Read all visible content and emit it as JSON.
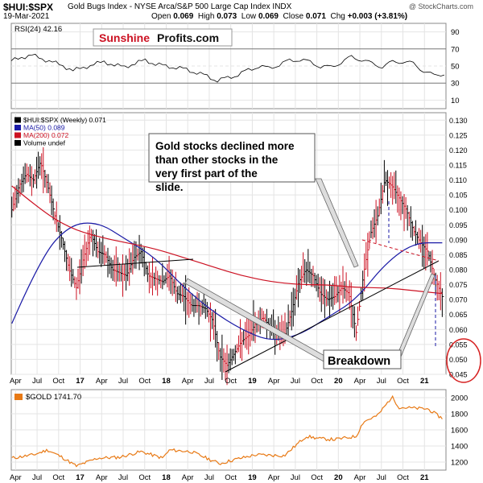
{
  "header": {
    "symbol": "$HUI:$SPX",
    "description": "Gold Bugs Index - NYSE Arca/S&P 500 Large Cap Index  INDX",
    "watermark": "@ StockCharts.com",
    "date": "19-Mar-2021",
    "ohlc": {
      "open_label": "Open",
      "open": "0.069",
      "high_label": "High",
      "high": "0.073",
      "low_label": "Low",
      "low": "0.069",
      "close_label": "Close",
      "close": "0.071",
      "chg_label": "Chg",
      "chg": "+0.003 (+3.81%)"
    }
  },
  "logo": {
    "part1": "Sunshine",
    "part2": "Profits.com"
  },
  "rsi_panel": {
    "legend": "RSI(24) 42.16",
    "ticks": [
      90,
      70,
      50,
      30,
      10
    ]
  },
  "main_panel": {
    "legend": [
      {
        "text": "$HUI:$SPX (Weekly) 0.071",
        "color": "#000000"
      },
      {
        "text": "MA(50) 0.089",
        "color": "#1a1aa6"
      },
      {
        "text": "MA(200) 0.072",
        "color": "#cc1122"
      },
      {
        "text": "Volume undef",
        "color": "#000000"
      }
    ],
    "ticks": [
      "0.130",
      "0.125",
      "0.120",
      "0.115",
      "0.110",
      "0.105",
      "0.100",
      "0.095",
      "0.090",
      "0.085",
      "0.080",
      "0.075",
      "0.070",
      "0.065",
      "0.060",
      "0.055",
      "0.050",
      "0.045"
    ],
    "annotation_top": "Gold stocks declined more than other stocks in the very first part of the slide.",
    "annotation_bottom": "Breakdown"
  },
  "gold_panel": {
    "legend": "$GOLD 1741.70",
    "ticks": [
      2000,
      1800,
      1600,
      1400,
      1200
    ]
  },
  "x_axis": {
    "labels": [
      "Apr",
      "Jul",
      "Oct",
      "17",
      "Apr",
      "Jul",
      "Oct",
      "18",
      "Apr",
      "Jul",
      "Oct",
      "19",
      "Apr",
      "Jul",
      "Oct",
      "20",
      "Apr",
      "Jul",
      "Oct",
      "21"
    ]
  },
  "colors": {
    "price": "#000000",
    "ma50": "#1a1aa6",
    "ma200": "#cc1122",
    "gold": "#e87a16",
    "logo_red": "#cc1122",
    "highlight_circle": "#d62020"
  },
  "chart_data": [
    {
      "type": "line",
      "title": "$HUI:$SPX (Weekly)",
      "series": [
        {
          "name": "$HUI:$SPX (Weekly) 0.071",
          "x": [
            "2016-03",
            "2016-04",
            "2016-05",
            "2016-06",
            "2016-07",
            "2016-08",
            "2016-09",
            "2016-10",
            "2016-11",
            "2016-12",
            "2017-01",
            "2017-02",
            "2017-03",
            "2017-04",
            "2017-05",
            "2017-06",
            "2017-07",
            "2017-08",
            "2017-09",
            "2017-10",
            "2017-11",
            "2017-12",
            "2018-01",
            "2018-02",
            "2018-03",
            "2018-04",
            "2018-05",
            "2018-06",
            "2018-07",
            "2018-08",
            "2018-09",
            "2018-10",
            "2018-11",
            "2018-12",
            "2019-01",
            "2019-02",
            "2019-03",
            "2019-04",
            "2019-05",
            "2019-06",
            "2019-07",
            "2019-08",
            "2019-09",
            "2019-10",
            "2019-11",
            "2019-12",
            "2020-01",
            "2020-02",
            "2020-03",
            "2020-04",
            "2020-05",
            "2020-06",
            "2020-07",
            "2020-08",
            "2020-09",
            "2020-10",
            "2020-11",
            "2020-12",
            "2021-01",
            "2021-02",
            "2021-03"
          ],
          "values": [
            0.1,
            0.108,
            0.112,
            0.11,
            0.116,
            0.108,
            0.098,
            0.09,
            0.08,
            0.074,
            0.084,
            0.092,
            0.086,
            0.085,
            0.08,
            0.079,
            0.078,
            0.084,
            0.086,
            0.078,
            0.077,
            0.076,
            0.078,
            0.072,
            0.071,
            0.068,
            0.068,
            0.067,
            0.063,
            0.051,
            0.048,
            0.052,
            0.056,
            0.058,
            0.062,
            0.064,
            0.061,
            0.059,
            0.058,
            0.066,
            0.076,
            0.08,
            0.078,
            0.072,
            0.07,
            0.071,
            0.074,
            0.072,
            0.059,
            0.078,
            0.092,
            0.098,
            0.11,
            0.108,
            0.104,
            0.1,
            0.093,
            0.089,
            0.086,
            0.077,
            0.071
          ]
        },
        {
          "name": "MA(50) 0.089",
          "x": [
            "2016-03",
            "2016-07",
            "2016-11",
            "2017-03",
            "2017-07",
            "2017-11",
            "2018-03",
            "2018-07",
            "2018-11",
            "2019-03",
            "2019-07",
            "2019-11",
            "2020-03",
            "2020-07",
            "2020-11",
            "2021-03"
          ],
          "values": [
            0.062,
            0.084,
            0.095,
            0.096,
            0.09,
            0.084,
            0.074,
            0.066,
            0.06,
            0.056,
            0.058,
            0.064,
            0.07,
            0.082,
            0.089,
            0.089
          ]
        },
        {
          "name": "MA(200) 0.072",
          "x": [
            "2016-03",
            "2016-07",
            "2016-11",
            "2017-03",
            "2017-07",
            "2017-11",
            "2018-03",
            "2018-07",
            "2018-11",
            "2019-03",
            "2019-07",
            "2019-11",
            "2020-03",
            "2020-07",
            "2020-11",
            "2021-03"
          ],
          "values": [
            0.108,
            0.1,
            0.094,
            0.091,
            0.089,
            0.087,
            0.084,
            0.081,
            0.078,
            0.076,
            0.075,
            0.075,
            0.074,
            0.074,
            0.073,
            0.072
          ]
        }
      ],
      "ylim": [
        0.045,
        0.13
      ],
      "grid": true,
      "legend_placement": "top-left"
    },
    {
      "type": "line",
      "title": "RSI(24)",
      "series": [
        {
          "name": "RSI(24) 42.16",
          "values": [
            56,
            60,
            63,
            58,
            55,
            50,
            45,
            48,
            52,
            55,
            51,
            49,
            53,
            57,
            52,
            50,
            48,
            46,
            42,
            38,
            33,
            36,
            40,
            45,
            50,
            47,
            52,
            56,
            58,
            54,
            50,
            48,
            55,
            60,
            58,
            52,
            50,
            54,
            56,
            52,
            45,
            38,
            42
          ]
        }
      ],
      "ylim": [
        0,
        100
      ],
      "grid": true
    },
    {
      "type": "line",
      "title": "$GOLD",
      "series": [
        {
          "name": "$GOLD 1741.70",
          "x": [
            "2016-03",
            "2016-06",
            "2016-08",
            "2016-10",
            "2016-12",
            "2017-03",
            "2017-06",
            "2017-09",
            "2017-12",
            "2018-01",
            "2018-04",
            "2018-08",
            "2018-10",
            "2019-01",
            "2019-05",
            "2019-08",
            "2019-10",
            "2019-12",
            "2020-03",
            "2020-04",
            "2020-06",
            "2020-08",
            "2020-09",
            "2020-11",
            "2021-01",
            "2021-03"
          ],
          "values": [
            1250,
            1290,
            1350,
            1260,
            1150,
            1250,
            1260,
            1330,
            1250,
            1350,
            1330,
            1180,
            1230,
            1290,
            1280,
            1520,
            1490,
            1480,
            1520,
            1700,
            1780,
            2010,
            1880,
            1870,
            1860,
            1741.7
          ]
        }
      ],
      "ylim": [
        1100,
        2100
      ],
      "grid": true
    }
  ]
}
